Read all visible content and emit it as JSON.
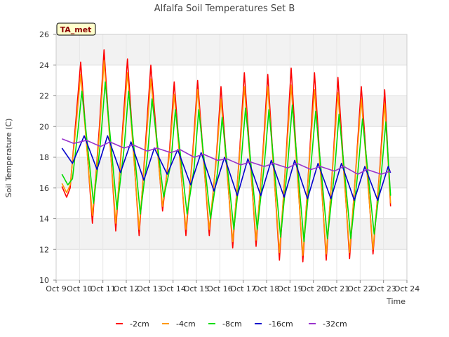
{
  "chart_data": {
    "type": "line",
    "title": "Alfalfa Soil Temperatures Set B",
    "xlabel": "Time",
    "ylabel": "Soil Temperature (C)",
    "annotation": "TA_met",
    "xlim": [
      9,
      24
    ],
    "ylim": [
      10,
      26
    ],
    "x_ticks": [
      9,
      10,
      11,
      12,
      13,
      14,
      15,
      16,
      17,
      18,
      19,
      20,
      21,
      22,
      23,
      24
    ],
    "x_tick_labels": [
      "Oct 9",
      "Oct 10",
      "Oct 11",
      "Oct 12",
      "Oct 13",
      "Oct 14",
      "Oct 15",
      "Oct 16",
      "Oct 17",
      "Oct 18",
      "Oct 19",
      "Oct 20",
      "Oct 21",
      "Oct 22",
      "Oct 23",
      "Oct 24"
    ],
    "y_ticks": [
      10,
      12,
      14,
      16,
      18,
      20,
      22,
      24,
      26
    ],
    "grid": true,
    "legend_position": "bottom",
    "series": [
      {
        "name": "-2cm",
        "color": "#ff0000",
        "x": [
          9.25,
          9.45,
          9.6,
          9.85,
          10.05,
          10.55,
          10.85,
          11.05,
          11.55,
          11.85,
          12.05,
          12.55,
          12.85,
          13.05,
          13.55,
          13.85,
          14.05,
          14.55,
          14.85,
          15.05,
          15.55,
          15.85,
          16.05,
          16.55,
          16.85,
          17.05,
          17.55,
          17.85,
          18.05,
          18.55,
          18.85,
          19.05,
          19.55,
          19.85,
          20.05,
          20.55,
          20.85,
          21.05,
          21.55,
          21.85,
          22.05,
          22.55,
          22.85,
          23.05,
          23.3
        ],
        "y": [
          16.1,
          15.4,
          16.0,
          20.5,
          24.2,
          13.7,
          20.0,
          25.0,
          13.2,
          20.0,
          24.4,
          12.9,
          19.5,
          24.0,
          14.5,
          18.5,
          22.9,
          12.9,
          18.5,
          23.0,
          12.9,
          18.0,
          22.6,
          12.1,
          18.5,
          23.5,
          12.2,
          18.5,
          23.4,
          11.3,
          18.5,
          23.8,
          11.2,
          18.5,
          23.5,
          11.3,
          18.0,
          23.2,
          11.4,
          18.0,
          22.6,
          11.7,
          17.5,
          22.4,
          14.8
        ]
      },
      {
        "name": "-4cm",
        "color": "#ff9900",
        "x": [
          9.25,
          9.45,
          9.6,
          9.85,
          10.05,
          10.55,
          10.85,
          11.05,
          11.55,
          11.85,
          12.05,
          12.55,
          12.85,
          13.05,
          13.55,
          13.85,
          14.05,
          14.55,
          14.85,
          15.05,
          15.55,
          15.85,
          16.05,
          16.55,
          16.85,
          17.05,
          17.55,
          17.85,
          18.05,
          18.55,
          18.85,
          19.05,
          19.55,
          19.85,
          20.05,
          20.55,
          20.85,
          21.05,
          21.55,
          21.85,
          22.05,
          22.55,
          22.85,
          23.05,
          23.3
        ],
        "y": [
          16.3,
          15.7,
          16.2,
          20.0,
          23.4,
          14.2,
          19.5,
          24.3,
          13.7,
          19.5,
          23.5,
          13.3,
          19.0,
          23.1,
          14.8,
          18.2,
          22.1,
          13.3,
          18.2,
          22.4,
          13.3,
          17.8,
          21.8,
          12.5,
          18.2,
          22.6,
          12.6,
          18.2,
          22.6,
          11.8,
          18.2,
          22.7,
          11.6,
          18.2,
          22.4,
          11.7,
          17.8,
          22.2,
          11.8,
          17.8,
          21.8,
          12.0,
          17.3,
          21.5,
          15.0
        ]
      },
      {
        "name": "-8cm",
        "color": "#00dd00",
        "x": [
          9.25,
          9.5,
          9.7,
          9.95,
          10.1,
          10.6,
          10.9,
          11.1,
          11.6,
          11.9,
          12.1,
          12.6,
          12.9,
          13.1,
          13.6,
          13.9,
          14.1,
          14.6,
          14.9,
          15.1,
          15.6,
          15.9,
          16.1,
          16.6,
          16.9,
          17.1,
          17.6,
          17.9,
          18.1,
          18.6,
          18.9,
          19.1,
          19.6,
          19.9,
          20.1,
          20.6,
          20.9,
          21.1,
          21.6,
          21.9,
          22.1,
          22.6,
          22.9,
          23.1,
          23.3
        ],
        "y": [
          16.9,
          16.2,
          16.6,
          20.0,
          22.3,
          15.0,
          19.0,
          22.9,
          14.6,
          18.5,
          22.3,
          14.3,
          18.0,
          21.8,
          15.4,
          17.5,
          21.1,
          14.3,
          17.3,
          21.1,
          14.0,
          17.0,
          20.6,
          13.3,
          17.5,
          21.2,
          13.3,
          17.5,
          21.1,
          12.8,
          17.5,
          21.4,
          12.5,
          17.5,
          21.0,
          12.7,
          17.0,
          20.8,
          12.7,
          17.0,
          20.5,
          13.0,
          16.8,
          20.3,
          15.5
        ]
      },
      {
        "name": "-16cm",
        "color": "#0000cc",
        "x": [
          9.25,
          9.7,
          10.2,
          10.75,
          11.2,
          11.75,
          12.2,
          12.75,
          13.2,
          13.75,
          14.2,
          14.75,
          15.2,
          15.75,
          16.2,
          16.75,
          17.2,
          17.75,
          18.2,
          18.75,
          19.2,
          19.75,
          20.2,
          20.75,
          21.2,
          21.75,
          22.2,
          22.75,
          23.2,
          23.3
        ],
        "y": [
          18.6,
          17.6,
          19.4,
          17.2,
          19.4,
          17.0,
          19.0,
          16.5,
          18.6,
          16.9,
          18.5,
          16.2,
          18.3,
          15.8,
          18.0,
          15.5,
          17.9,
          15.5,
          17.8,
          15.4,
          17.8,
          15.3,
          17.6,
          15.3,
          17.6,
          15.2,
          17.4,
          15.2,
          17.4,
          17.0
        ]
      },
      {
        "name": "-32cm",
        "color": "#9933cc",
        "x": [
          9.25,
          9.75,
          10.3,
          10.9,
          11.3,
          11.9,
          12.3,
          12.9,
          13.3,
          13.9,
          14.3,
          14.9,
          15.3,
          15.9,
          16.3,
          16.9,
          17.3,
          17.9,
          18.3,
          18.9,
          19.3,
          19.9,
          20.3,
          20.9,
          21.3,
          21.9,
          22.3,
          22.9,
          23.3
        ],
        "y": [
          19.2,
          18.9,
          19.1,
          18.7,
          19.0,
          18.6,
          18.8,
          18.4,
          18.6,
          18.3,
          18.5,
          18.0,
          18.2,
          17.8,
          17.9,
          17.5,
          17.7,
          17.4,
          17.6,
          17.3,
          17.6,
          17.2,
          17.4,
          17.1,
          17.4,
          16.9,
          17.2,
          16.9,
          17.1
        ]
      }
    ]
  }
}
